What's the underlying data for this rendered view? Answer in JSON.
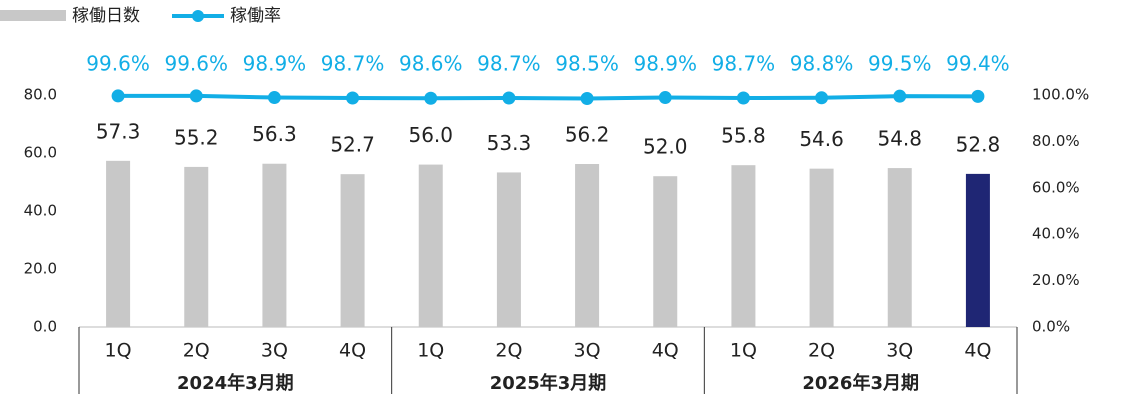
{
  "chart_data": {
    "type": "bar-line",
    "categories": [
      "1Q",
      "2Q",
      "3Q",
      "4Q",
      "1Q",
      "2Q",
      "3Q",
      "4Q",
      "1Q",
      "2Q",
      "3Q",
      "4Q"
    ],
    "groups": [
      "2024年3月期",
      "2025年3月期",
      "2026年3月期"
    ],
    "series": [
      {
        "name": "稼働日数",
        "type": "bar",
        "color": "#c8c8c8",
        "colors": [
          "#c8c8c8",
          "#c8c8c8",
          "#c8c8c8",
          "#c8c8c8",
          "#c8c8c8",
          "#c8c8c8",
          "#c8c8c8",
          "#c8c8c8",
          "#c8c8c8",
          "#c8c8c8",
          "#c8c8c8",
          "#1f2674"
        ],
        "values": [
          57.3,
          55.2,
          56.3,
          52.7,
          56.0,
          53.3,
          56.2,
          52.0,
          55.8,
          54.6,
          54.8,
          52.8
        ],
        "value_labels": [
          "57.3",
          "55.2",
          "56.3",
          "52.7",
          "56.0",
          "53.3",
          "56.2",
          "52.0",
          "55.8",
          "54.6",
          "54.8",
          "52.8"
        ]
      },
      {
        "name": "稼働率",
        "type": "line",
        "axis": "y2",
        "color": "#12aee6",
        "values": [
          99.6,
          99.6,
          98.9,
          98.7,
          98.6,
          98.7,
          98.5,
          98.9,
          98.7,
          98.8,
          99.5,
          99.4
        ],
        "value_labels": [
          "99.6%",
          "99.6%",
          "98.9%",
          "98.7%",
          "98.6%",
          "98.7%",
          "98.5%",
          "98.9%",
          "98.7%",
          "98.8%",
          "99.5%",
          "99.4%"
        ]
      }
    ],
    "ylim": [
      0,
      80
    ],
    "yticks": [
      {
        "value": 0,
        "label": "0.0"
      },
      {
        "value": 20,
        "label": "20.0"
      },
      {
        "value": 40,
        "label": "40.0"
      },
      {
        "value": 60,
        "label": "60.0"
      },
      {
        "value": 80,
        "label": "80.0"
      }
    ],
    "y2lim": [
      0,
      100
    ],
    "y2ticks": [
      {
        "value": 0,
        "label": "0.0%"
      },
      {
        "value": 20,
        "label": "20.0%"
      },
      {
        "value": 40,
        "label": "40.0%"
      },
      {
        "value": 60,
        "label": "60.0%"
      },
      {
        "value": 80,
        "label": "80.0%"
      },
      {
        "value": 100,
        "label": "100.0%"
      }
    ]
  }
}
